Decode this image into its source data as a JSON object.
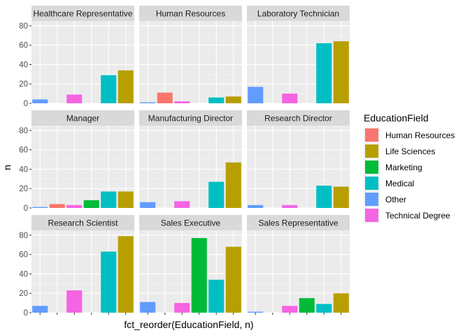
{
  "chart_data": {
    "type": "bar",
    "facet_by": "JobRole",
    "xlabel": "fct_reorder(EducationField, n)",
    "ylabel": "n",
    "ylim": [
      0,
      85
    ],
    "yticks": [
      0,
      20,
      40,
      60,
      80
    ],
    "grid": true,
    "legend": {
      "title": "EducationField",
      "placement": "right",
      "entries": [
        {
          "name": "Human Resources",
          "color": "#F8766D"
        },
        {
          "name": "Life Sciences",
          "color": "#B79F00"
        },
        {
          "name": "Marketing",
          "color": "#00BA38"
        },
        {
          "name": "Medical",
          "color": "#00BFC4"
        },
        {
          "name": "Other",
          "color": "#619CFF"
        },
        {
          "name": "Technical Degree",
          "color": "#F564E3"
        }
      ]
    },
    "category_order": [
      "Other",
      "Human Resources",
      "Technical Degree",
      "Marketing",
      "Medical",
      "Life Sciences"
    ],
    "panels": [
      {
        "title": "Healthcare Representative",
        "values": {
          "Other": 4,
          "Technical Degree": 9,
          "Medical": 29,
          "Life Sciences": 34
        }
      },
      {
        "title": "Human Resources",
        "values": {
          "Other": 1,
          "Human Resources": 11,
          "Technical Degree": 2,
          "Medical": 6,
          "Life Sciences": 7
        }
      },
      {
        "title": "Laboratory Technician",
        "values": {
          "Other": 17,
          "Technical Degree": 10,
          "Medical": 62,
          "Life Sciences": 64
        }
      },
      {
        "title": "Manager",
        "values": {
          "Other": 1,
          "Human Resources": 4,
          "Technical Degree": 3,
          "Marketing": 8,
          "Medical": 17,
          "Life Sciences": 17
        }
      },
      {
        "title": "Manufacturing Director",
        "values": {
          "Other": 6,
          "Technical Degree": 7,
          "Medical": 27,
          "Life Sciences": 47
        }
      },
      {
        "title": "Research Director",
        "values": {
          "Other": 3,
          "Technical Degree": 3,
          "Medical": 23,
          "Life Sciences": 22
        }
      },
      {
        "title": "Research Scientist",
        "values": {
          "Other": 7,
          "Technical Degree": 23,
          "Medical": 63,
          "Life Sciences": 79
        }
      },
      {
        "title": "Sales Executive",
        "values": {
          "Other": 11,
          "Technical Degree": 10,
          "Marketing": 77,
          "Medical": 34,
          "Life Sciences": 68
        }
      },
      {
        "title": "Sales Representative",
        "values": {
          "Other": 1,
          "Technical Degree": 7,
          "Marketing": 15,
          "Medical": 9,
          "Life Sciences": 20
        }
      }
    ]
  }
}
